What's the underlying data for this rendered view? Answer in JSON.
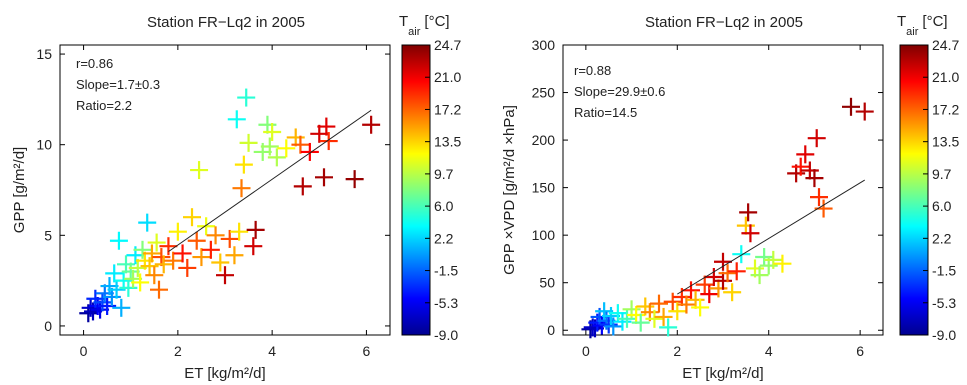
{
  "colorbar": {
    "label_main": "T",
    "label_sub": "air",
    "label_unit": "[°C]",
    "ticks": [
      "24.7",
      "21.0",
      "17.2",
      "13.5",
      "9.7",
      "6.0",
      "2.2",
      "-1.5",
      "-5.3",
      "-9.0"
    ],
    "range": [
      -9.0,
      24.7
    ]
  },
  "chart_data": [
    {
      "type": "scatter",
      "title": "Station FR−Lq2 in 2005",
      "xlabel": "ET [kg/m²/d]",
      "ylabel": "GPP [g/m²/d]",
      "xlim": [
        -0.5,
        6.5
      ],
      "ylim": [
        -0.5,
        15.5
      ],
      "xticks": [
        "0",
        "2",
        "4",
        "6"
      ],
      "yticks": [
        "0",
        "5",
        "10",
        "15"
      ],
      "stats": [
        "r=0.86",
        "Slope=1.7±0.3",
        "Ratio=2.2"
      ],
      "fit_line": {
        "x": [
          1.8,
          6.1
        ],
        "y": [
          4.1,
          11.9
        ]
      },
      "points": [
        {
          "x": 0.1,
          "y": 0.7,
          "t": -8.0
        },
        {
          "x": 0.15,
          "y": 1.0,
          "t": -6.5
        },
        {
          "x": 0.2,
          "y": 0.8,
          "t": -7.0
        },
        {
          "x": 0.3,
          "y": 1.1,
          "t": -5.0
        },
        {
          "x": 0.25,
          "y": 1.5,
          "t": -3.5
        },
        {
          "x": 0.35,
          "y": 0.9,
          "t": -5.5
        },
        {
          "x": 0.4,
          "y": 1.3,
          "t": -2.5
        },
        {
          "x": 0.45,
          "y": 1.8,
          "t": -1.0
        },
        {
          "x": 0.5,
          "y": 1.1,
          "t": -4.0
        },
        {
          "x": 0.55,
          "y": 2.2,
          "t": 1.0
        },
        {
          "x": 0.6,
          "y": 1.6,
          "t": 0.0
        },
        {
          "x": 0.65,
          "y": 2.9,
          "t": 3.0
        },
        {
          "x": 0.7,
          "y": 2.0,
          "t": 2.0
        },
        {
          "x": 0.75,
          "y": 4.7,
          "t": 3.5
        },
        {
          "x": 0.8,
          "y": 1.0,
          "t": 1.0
        },
        {
          "x": 0.85,
          "y": 2.5,
          "t": 4.0
        },
        {
          "x": 0.9,
          "y": 3.4,
          "t": 6.0
        },
        {
          "x": 0.95,
          "y": 2.1,
          "t": 5.0
        },
        {
          "x": 1.0,
          "y": 3.0,
          "t": 7.0
        },
        {
          "x": 1.05,
          "y": 2.6,
          "t": 9.0
        },
        {
          "x": 1.1,
          "y": 3.9,
          "t": 3.0
        },
        {
          "x": 1.15,
          "y": 3.2,
          "t": 10.0
        },
        {
          "x": 1.2,
          "y": 2.4,
          "t": 12.0
        },
        {
          "x": 1.25,
          "y": 4.2,
          "t": 8.0
        },
        {
          "x": 1.3,
          "y": 3.6,
          "t": 13.0
        },
        {
          "x": 1.35,
          "y": 5.7,
          "t": 2.5
        },
        {
          "x": 1.4,
          "y": 3.3,
          "t": 14.0
        },
        {
          "x": 1.45,
          "y": 4.0,
          "t": 15.0
        },
        {
          "x": 1.5,
          "y": 2.8,
          "t": 16.0
        },
        {
          "x": 1.55,
          "y": 4.6,
          "t": 11.0
        },
        {
          "x": 1.6,
          "y": 2.0,
          "t": 17.0
        },
        {
          "x": 1.65,
          "y": 3.8,
          "t": 18.0
        },
        {
          "x": 1.7,
          "y": 3.4,
          "t": 14.5
        },
        {
          "x": 1.8,
          "y": 4.4,
          "t": 19.0
        },
        {
          "x": 1.9,
          "y": 3.6,
          "t": 16.5
        },
        {
          "x": 2.0,
          "y": 5.2,
          "t": 12.5
        },
        {
          "x": 2.1,
          "y": 4.0,
          "t": 20.0
        },
        {
          "x": 2.2,
          "y": 3.2,
          "t": 18.5
        },
        {
          "x": 2.3,
          "y": 6.0,
          "t": 13.5
        },
        {
          "x": 2.4,
          "y": 4.7,
          "t": 17.5
        },
        {
          "x": 2.5,
          "y": 3.8,
          "t": 15.5
        },
        {
          "x": 2.6,
          "y": 5.5,
          "t": 11.5
        },
        {
          "x": 2.7,
          "y": 4.2,
          "t": 19.5
        },
        {
          "x": 2.8,
          "y": 5.0,
          "t": 16.0
        },
        {
          "x": 2.9,
          "y": 3.5,
          "t": 14.0
        },
        {
          "x": 2.45,
          "y": 8.6,
          "t": 11.0
        },
        {
          "x": 3.0,
          "y": 2.8,
          "t": 22.5
        },
        {
          "x": 3.1,
          "y": 4.8,
          "t": 18.0
        },
        {
          "x": 3.2,
          "y": 3.9,
          "t": 15.0
        },
        {
          "x": 3.3,
          "y": 5.2,
          "t": 13.0
        },
        {
          "x": 3.35,
          "y": 7.6,
          "t": 16.5
        },
        {
          "x": 3.4,
          "y": 8.9,
          "t": 13.0
        },
        {
          "x": 3.5,
          "y": 10.1,
          "t": 10.5
        },
        {
          "x": 3.45,
          "y": 12.6,
          "t": 5.0
        },
        {
          "x": 3.25,
          "y": 11.4,
          "t": 4.0
        },
        {
          "x": 3.6,
          "y": 4.4,
          "t": 22.0
        },
        {
          "x": 3.65,
          "y": 5.3,
          "t": 23.5
        },
        {
          "x": 3.8,
          "y": 9.6,
          "t": 8.5
        },
        {
          "x": 3.9,
          "y": 11.1,
          "t": 8.0
        },
        {
          "x": 3.95,
          "y": 9.9,
          "t": 9.0
        },
        {
          "x": 4.0,
          "y": 10.7,
          "t": 11.0
        },
        {
          "x": 4.1,
          "y": 9.3,
          "t": 9.5
        },
        {
          "x": 4.3,
          "y": 9.8,
          "t": 12.0
        },
        {
          "x": 4.5,
          "y": 10.4,
          "t": 14.5
        },
        {
          "x": 4.6,
          "y": 10.0,
          "t": 17.5
        },
        {
          "x": 4.65,
          "y": 7.7,
          "t": 23.0
        },
        {
          "x": 4.8,
          "y": 9.6,
          "t": 20.5
        },
        {
          "x": 5.0,
          "y": 10.6,
          "t": 22.0
        },
        {
          "x": 5.1,
          "y": 8.2,
          "t": 23.5
        },
        {
          "x": 5.2,
          "y": 10.2,
          "t": 19.0
        },
        {
          "x": 5.15,
          "y": 11.0,
          "t": 21.5
        },
        {
          "x": 5.75,
          "y": 8.1,
          "t": 24.0
        },
        {
          "x": 6.1,
          "y": 11.1,
          "t": 23.0
        }
      ]
    },
    {
      "type": "scatter",
      "title": "Station FR−Lq2 in 2005",
      "xlabel": "ET [kg/m²/d]",
      "ylabel": "GPP ×VPD [g/m²/d ×hPa]",
      "xlim": [
        -0.5,
        6.5
      ],
      "ylim": [
        -5,
        300
      ],
      "xticks": [
        "0",
        "2",
        "4",
        "6"
      ],
      "yticks": [
        "0",
        "50",
        "100",
        "150",
        "200",
        "250",
        "300"
      ],
      "stats": [
        "r=0.88",
        "Slope=29.9±0.6",
        "Ratio=14.5"
      ],
      "fit_line": {
        "x": [
          2.0,
          6.1
        ],
        "y": [
          38,
          158
        ]
      },
      "points": [
        {
          "x": 0.1,
          "y": 1,
          "t": -8.0
        },
        {
          "x": 0.15,
          "y": 3,
          "t": -6.5
        },
        {
          "x": 0.2,
          "y": 2,
          "t": -7.0
        },
        {
          "x": 0.25,
          "y": 8,
          "t": -4.0
        },
        {
          "x": 0.3,
          "y": 14,
          "t": -2.0
        },
        {
          "x": 0.35,
          "y": 5,
          "t": -5.0
        },
        {
          "x": 0.4,
          "y": 20,
          "t": 1.5
        },
        {
          "x": 0.45,
          "y": 10,
          "t": -1.0
        },
        {
          "x": 0.5,
          "y": 6,
          "t": -3.0
        },
        {
          "x": 0.55,
          "y": 15,
          "t": 2.0
        },
        {
          "x": 0.6,
          "y": 4,
          "t": 0.0
        },
        {
          "x": 0.7,
          "y": 18,
          "t": 4.0
        },
        {
          "x": 0.8,
          "y": 9,
          "t": 3.0
        },
        {
          "x": 0.9,
          "y": 12,
          "t": 6.0
        },
        {
          "x": 1.0,
          "y": 22,
          "t": 9.0
        },
        {
          "x": 1.1,
          "y": 16,
          "t": 12.0
        },
        {
          "x": 1.2,
          "y": 8,
          "t": 7.0
        },
        {
          "x": 1.3,
          "y": 25,
          "t": 14.0
        },
        {
          "x": 1.4,
          "y": 19,
          "t": 16.0
        },
        {
          "x": 1.5,
          "y": 12,
          "t": 11.0
        },
        {
          "x": 1.6,
          "y": 28,
          "t": 17.0
        },
        {
          "x": 1.7,
          "y": 14,
          "t": 15.0
        },
        {
          "x": 1.8,
          "y": 3,
          "t": 5.0
        },
        {
          "x": 1.9,
          "y": 30,
          "t": 18.0
        },
        {
          "x": 2.0,
          "y": 20,
          "t": 13.0
        },
        {
          "x": 2.1,
          "y": 35,
          "t": 19.0
        },
        {
          "x": 2.2,
          "y": 27,
          "t": 16.5
        },
        {
          "x": 2.3,
          "y": 42,
          "t": 20.0
        },
        {
          "x": 2.4,
          "y": 32,
          "t": 14.5
        },
        {
          "x": 2.5,
          "y": 24,
          "t": 12.0
        },
        {
          "x": 2.6,
          "y": 48,
          "t": 18.5
        },
        {
          "x": 2.7,
          "y": 38,
          "t": 21.0
        },
        {
          "x": 2.8,
          "y": 56,
          "t": 22.0
        },
        {
          "x": 2.9,
          "y": 44,
          "t": 15.5
        },
        {
          "x": 3.0,
          "y": 52,
          "t": 23.0
        },
        {
          "x": 3.0,
          "y": 72,
          "t": 22.5
        },
        {
          "x": 3.1,
          "y": 60,
          "t": 17.0
        },
        {
          "x": 3.2,
          "y": 40,
          "t": 13.5
        },
        {
          "x": 3.3,
          "y": 62,
          "t": 19.5
        },
        {
          "x": 3.4,
          "y": 80,
          "t": 4.0
        },
        {
          "x": 3.5,
          "y": 110,
          "t": 14.0
        },
        {
          "x": 3.55,
          "y": 124,
          "t": 23.5
        },
        {
          "x": 3.6,
          "y": 102,
          "t": 22.0
        },
        {
          "x": 3.7,
          "y": 65,
          "t": 11.0
        },
        {
          "x": 3.8,
          "y": 58,
          "t": 9.0
        },
        {
          "x": 3.9,
          "y": 77,
          "t": 7.5
        },
        {
          "x": 4.0,
          "y": 68,
          "t": 8.5
        },
        {
          "x": 4.1,
          "y": 74,
          "t": 10.0
        },
        {
          "x": 4.3,
          "y": 70,
          "t": 12.5
        },
        {
          "x": 4.6,
          "y": 165,
          "t": 23.0
        },
        {
          "x": 4.7,
          "y": 172,
          "t": 20.0
        },
        {
          "x": 4.8,
          "y": 185,
          "t": 21.5
        },
        {
          "x": 4.9,
          "y": 168,
          "t": 22.5
        },
        {
          "x": 5.0,
          "y": 160,
          "t": 23.5
        },
        {
          "x": 5.05,
          "y": 202,
          "t": 22.0
        },
        {
          "x": 5.1,
          "y": 140,
          "t": 19.0
        },
        {
          "x": 5.2,
          "y": 128,
          "t": 17.5
        },
        {
          "x": 5.8,
          "y": 235,
          "t": 24.2
        },
        {
          "x": 6.1,
          "y": 230,
          "t": 23.0
        }
      ]
    }
  ]
}
